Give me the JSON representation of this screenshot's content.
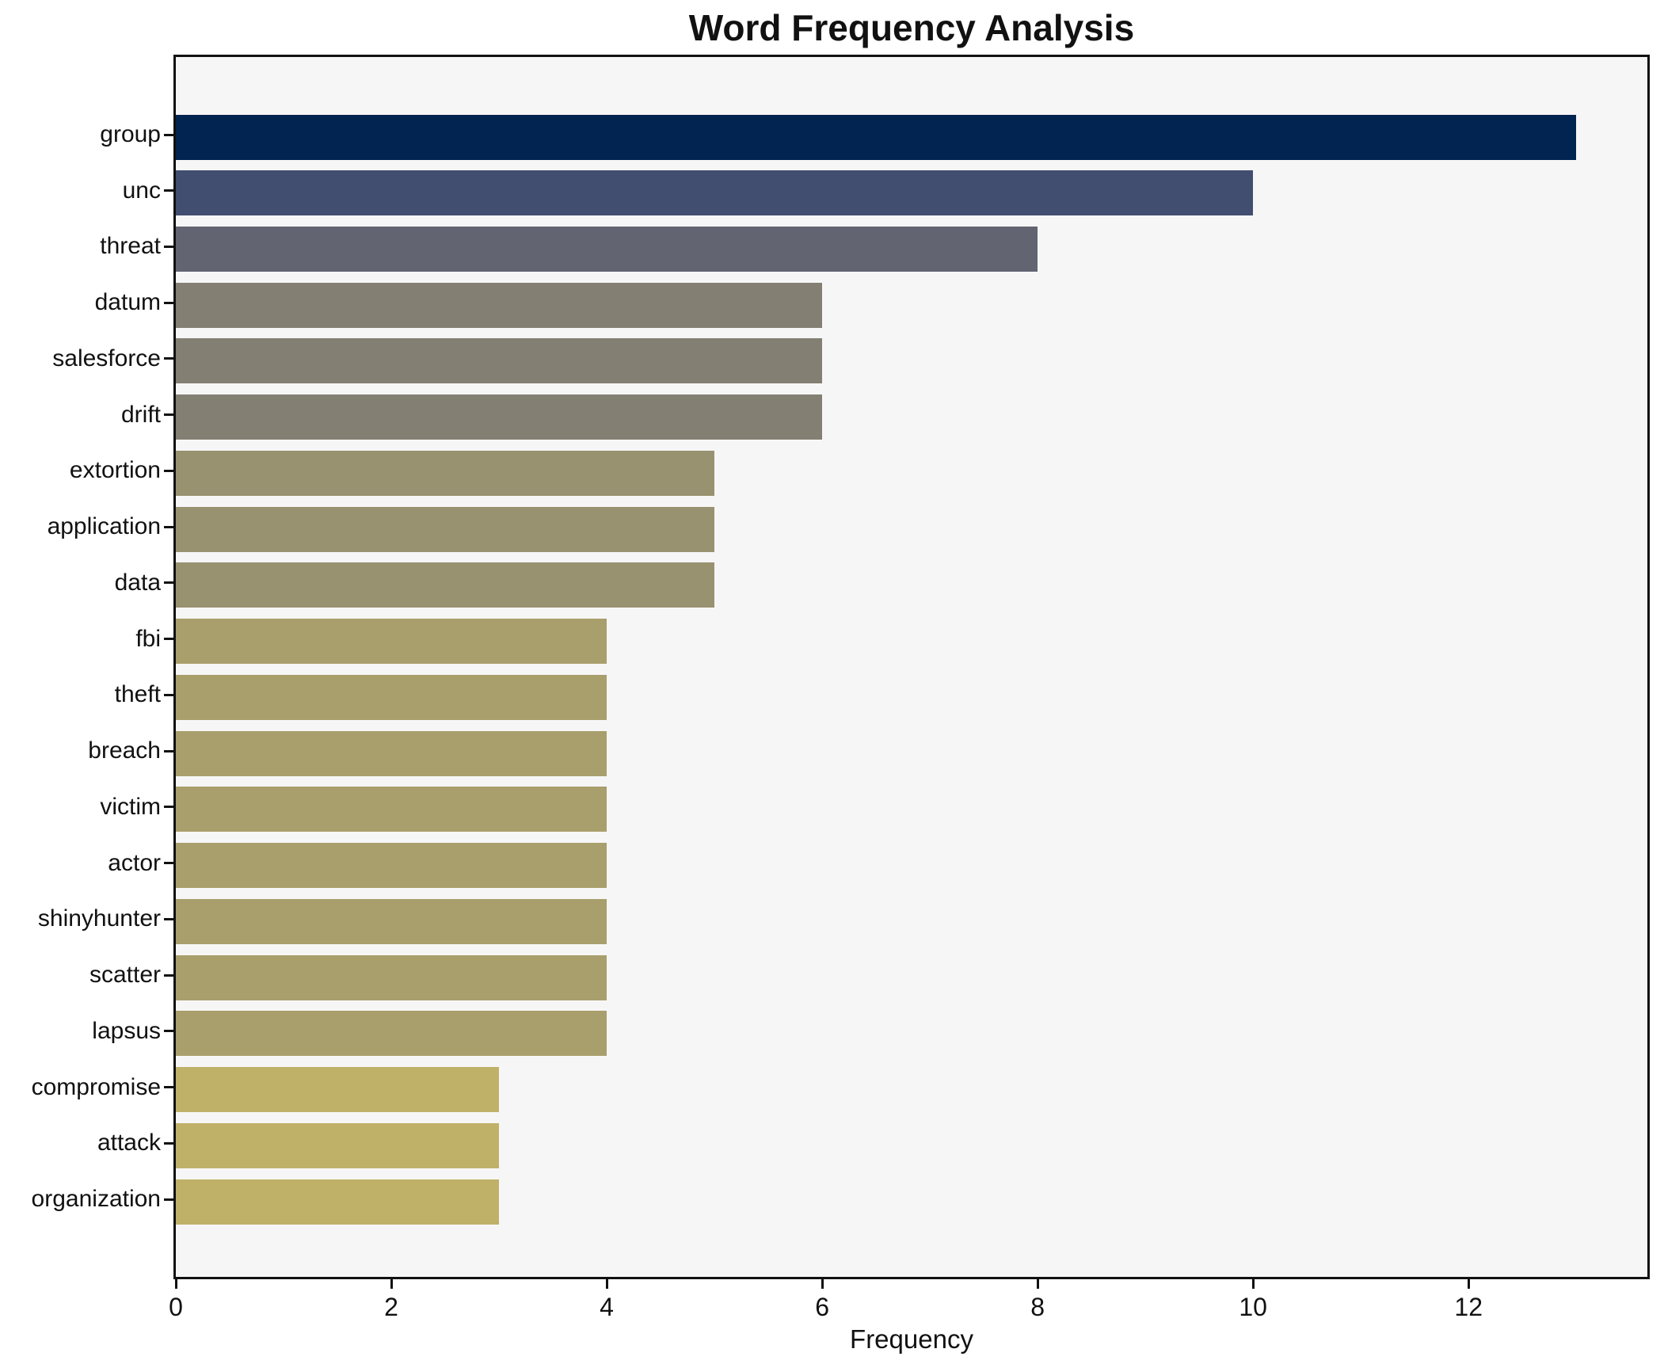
{
  "chart_data": {
    "type": "bar",
    "orientation": "horizontal",
    "title": "Word Frequency Analysis",
    "xlabel": "Frequency",
    "ylabel": "",
    "grid": false,
    "legend": null,
    "xlim": [
      0,
      13.66
    ],
    "xticks": [
      0,
      2,
      4,
      6,
      8,
      10,
      12
    ],
    "categories": [
      "group",
      "unc",
      "threat",
      "datum",
      "salesforce",
      "drift",
      "extortion",
      "application",
      "data",
      "fbi",
      "theft",
      "breach",
      "victim",
      "actor",
      "shinyhunter",
      "scatter",
      "lapsus",
      "compromise",
      "attack",
      "organization"
    ],
    "values": [
      13,
      10,
      8,
      6,
      6,
      6,
      5,
      5,
      5,
      4,
      4,
      4,
      4,
      4,
      4,
      4,
      4,
      3,
      3,
      3
    ],
    "bar_colors": [
      "#022450",
      "#414e70",
      "#626471",
      "#838073",
      "#838073",
      "#838073",
      "#999270",
      "#999270",
      "#999270",
      "#a99f6c",
      "#a99f6c",
      "#a99f6c",
      "#a99f6c",
      "#a99f6c",
      "#a99f6c",
      "#a99f6c",
      "#a99f6c",
      "#c0b169",
      "#c0b169",
      "#c0b169"
    ],
    "colors": {
      "plot_background": "#f7f6f7",
      "figure_background": "#ffffff",
      "axis_spine": "#111111",
      "text": "#111111"
    }
  }
}
